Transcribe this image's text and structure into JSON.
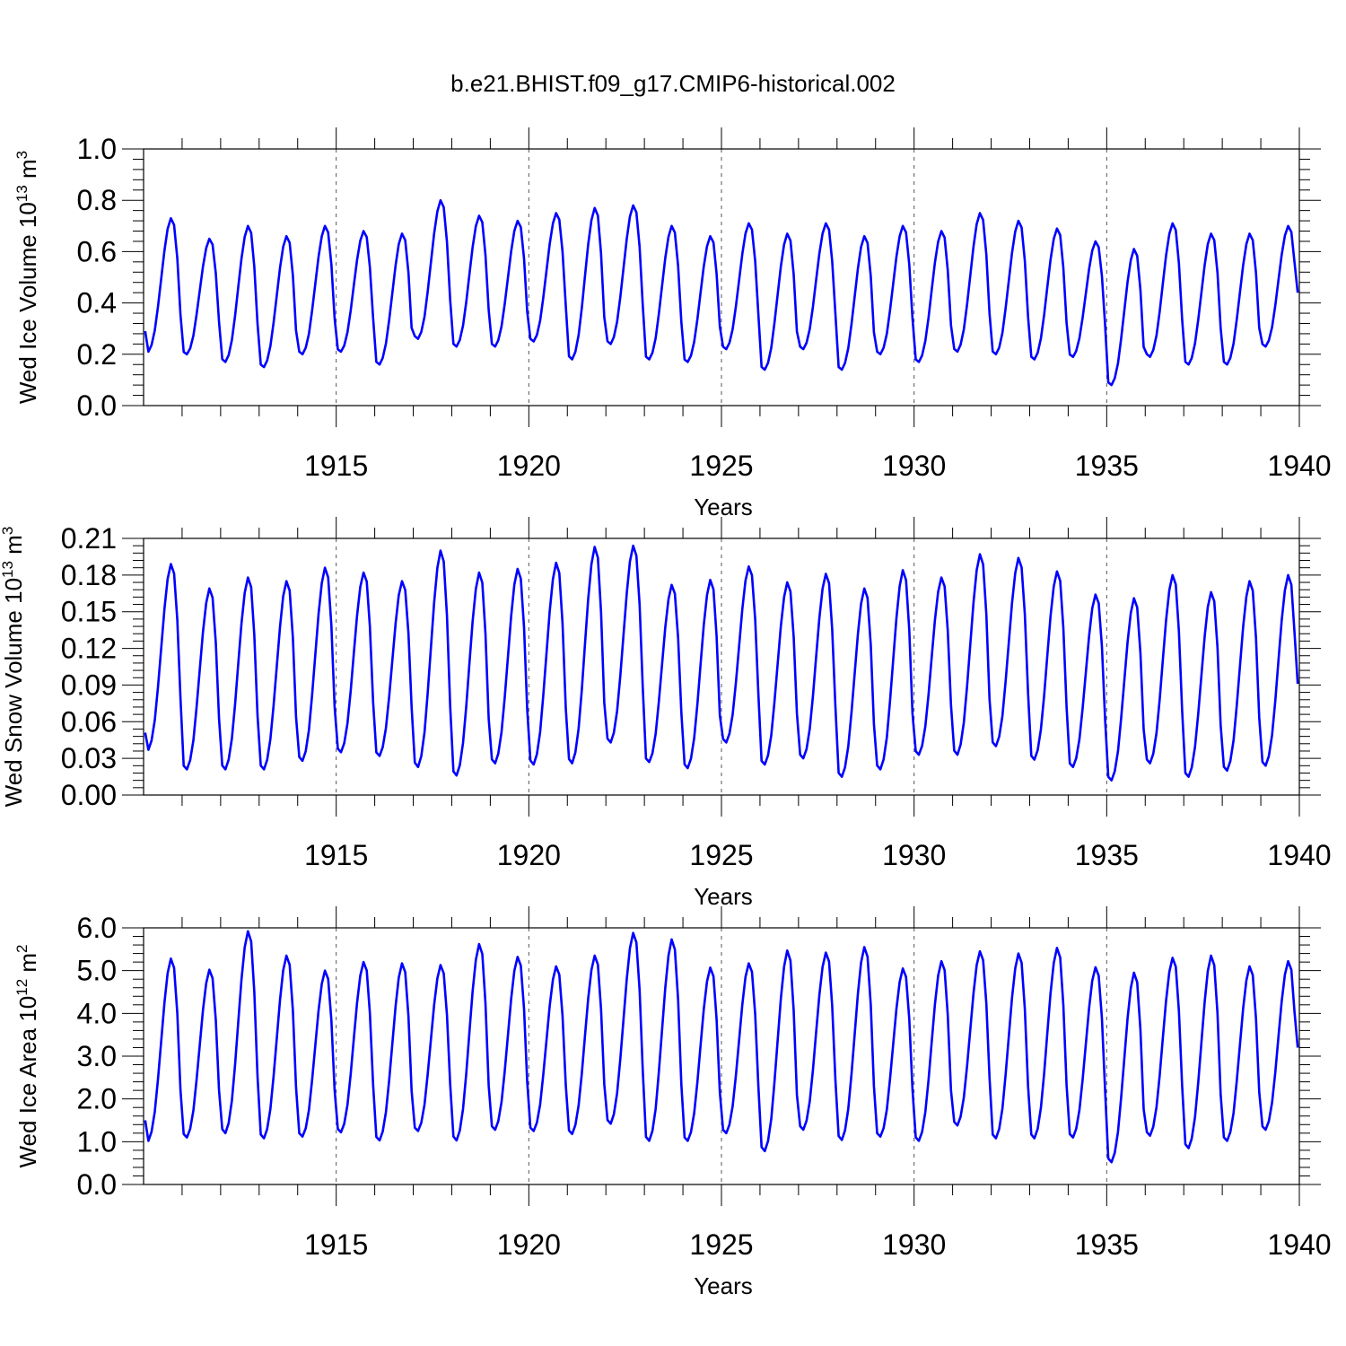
{
  "title": "b.e21.BHIST.f09_g17.CMIP6-historical.002",
  "line_color": "#0000ff",
  "chart_data": [
    {
      "type": "line",
      "series_name": "Wed Ice Volume",
      "ylabel": "Wed Ice Volume 10",
      "ylabel_exp": "13",
      "ylabel_unit": " m",
      "ylabel_unit_exp": "3",
      "xlabel": "Years",
      "xlim": [
        1910.0,
        1940.0
      ],
      "ylim": [
        0.0,
        1.0
      ],
      "yticks": [
        0.0,
        0.2,
        0.4,
        0.6,
        0.8,
        1.0
      ],
      "yticklabels": [
        "0.0",
        "0.2",
        "0.4",
        "0.6",
        "0.8",
        "1.0"
      ],
      "xticks": [
        1915,
        1920,
        1925,
        1930,
        1935,
        1940
      ],
      "xticklabels": [
        "1915",
        "1920",
        "1925",
        "1930",
        "1935",
        "1940"
      ],
      "annual_minima": [
        0.21,
        0.2,
        0.17,
        0.15,
        0.2,
        0.21,
        0.16,
        0.26,
        0.23,
        0.23,
        0.25,
        0.18,
        0.24,
        0.18,
        0.17,
        0.22,
        0.14,
        0.22,
        0.14,
        0.2,
        0.17,
        0.21,
        0.2,
        0.18,
        0.19,
        0.08,
        0.19,
        0.16,
        0.16,
        0.23
      ],
      "annual_maxima": [
        0.73,
        0.65,
        0.7,
        0.66,
        0.7,
        0.68,
        0.67,
        0.8,
        0.74,
        0.72,
        0.75,
        0.77,
        0.78,
        0.7,
        0.66,
        0.71,
        0.67,
        0.71,
        0.66,
        0.7,
        0.68,
        0.75,
        0.72,
        0.69,
        0.64,
        0.61,
        0.71,
        0.67,
        0.67,
        0.7
      ],
      "start_value": 0.29,
      "end_value": 0.44
    },
    {
      "type": "line",
      "series_name": "Wed Snow Volume",
      "ylabel": "Wed Snow Volume 10",
      "ylabel_exp": "13",
      "ylabel_unit": " m",
      "ylabel_unit_exp": "3",
      "xlabel": "Years",
      "xlim": [
        1910.0,
        1940.0
      ],
      "ylim": [
        0.0,
        0.21
      ],
      "yticks": [
        0.0,
        0.03,
        0.06,
        0.09,
        0.12,
        0.15,
        0.18,
        0.21
      ],
      "yticklabels": [
        "0.00",
        "0.03",
        "0.06",
        "0.09",
        "0.12",
        "0.15",
        "0.18",
        "0.21"
      ],
      "xticks": [
        1915,
        1920,
        1925,
        1930,
        1935,
        1940
      ],
      "xticklabels": [
        "1915",
        "1920",
        "1925",
        "1930",
        "1935",
        "1940"
      ],
      "annual_minima": [
        0.037,
        0.021,
        0.021,
        0.021,
        0.028,
        0.035,
        0.032,
        0.023,
        0.016,
        0.026,
        0.025,
        0.026,
        0.043,
        0.027,
        0.022,
        0.043,
        0.025,
        0.03,
        0.015,
        0.021,
        0.033,
        0.033,
        0.04,
        0.029,
        0.023,
        0.012,
        0.026,
        0.015,
        0.02,
        0.024
      ],
      "annual_maxima": [
        0.189,
        0.169,
        0.178,
        0.175,
        0.186,
        0.182,
        0.175,
        0.2,
        0.182,
        0.185,
        0.19,
        0.203,
        0.204,
        0.172,
        0.176,
        0.187,
        0.174,
        0.181,
        0.169,
        0.184,
        0.178,
        0.197,
        0.194,
        0.183,
        0.164,
        0.161,
        0.18,
        0.166,
        0.175,
        0.18
      ],
      "start_value": 0.051,
      "end_value": 0.091
    },
    {
      "type": "line",
      "series_name": "Wed Ice Area",
      "ylabel": "Wed Ice Area 10",
      "ylabel_exp": "12",
      "ylabel_unit": " m",
      "ylabel_unit_exp": "2",
      "xlabel": "Years",
      "xlim": [
        1910.0,
        1940.0
      ],
      "ylim": [
        0.0,
        6.0
      ],
      "yticks": [
        0.0,
        1.0,
        2.0,
        3.0,
        4.0,
        5.0,
        6.0
      ],
      "yticklabels": [
        "0.0",
        "1.0",
        "2.0",
        "3.0",
        "4.0",
        "5.0",
        "6.0"
      ],
      "xticks": [
        1915,
        1920,
        1925,
        1930,
        1935,
        1940
      ],
      "xticklabels": [
        "1915",
        "1920",
        "1925",
        "1930",
        "1935",
        "1940"
      ],
      "annual_minima": [
        1.02,
        1.1,
        1.2,
        1.08,
        1.12,
        1.22,
        1.03,
        1.25,
        1.03,
        1.28,
        1.25,
        1.18,
        1.42,
        1.02,
        1.02,
        1.2,
        0.78,
        1.28,
        1.04,
        1.12,
        1.02,
        1.38,
        1.08,
        1.08,
        1.1,
        0.52,
        1.14,
        0.85,
        1.02,
        1.28
      ],
      "annual_maxima": [
        5.28,
        5.02,
        5.92,
        5.35,
        5.0,
        5.2,
        5.17,
        5.13,
        5.62,
        5.32,
        5.1,
        5.35,
        5.88,
        5.73,
        5.07,
        5.17,
        5.47,
        5.42,
        5.55,
        5.05,
        5.22,
        5.45,
        5.4,
        5.53,
        5.08,
        4.95,
        5.3,
        5.35,
        5.1,
        5.22
      ],
      "start_value": 1.5,
      "end_value": 3.2
    }
  ]
}
